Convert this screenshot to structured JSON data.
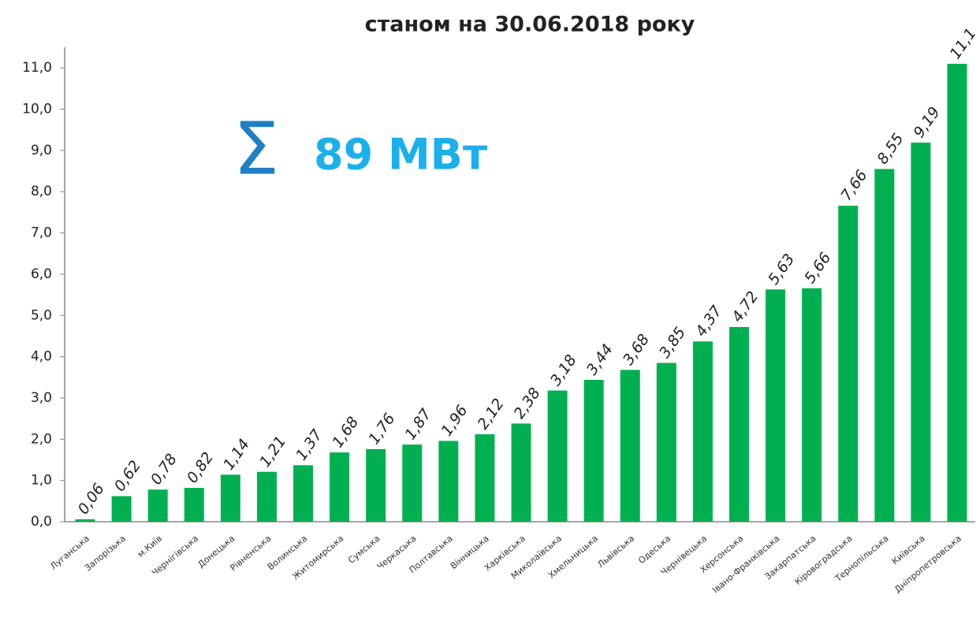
{
  "chart_data": {
    "type": "bar",
    "title": "станом на 30.06.2018 року",
    "annotation": {
      "symbol": "Σ",
      "text": "89 МВт"
    },
    "categories": [
      "Луганська",
      "Запорізька",
      "м.Київ",
      "Чернігівська",
      "Донецька",
      "Рівненська",
      "Волинська",
      "Житомирська",
      "Сумська",
      "Черкаська",
      "Полтавська",
      "Вінницька",
      "Харківська",
      "Миколаївська",
      "Хмельницька",
      "Львівська",
      "Одеська",
      "Чернівецька",
      "Херсонська",
      "Івано-Франківська",
      "Закарпатська",
      "Кіровоградська",
      "Тернопільська",
      "Київська",
      "Дніпропетровська"
    ],
    "values": [
      0.06,
      0.62,
      0.78,
      0.82,
      1.14,
      1.21,
      1.37,
      1.68,
      1.76,
      1.87,
      1.96,
      2.12,
      2.38,
      3.18,
      3.44,
      3.68,
      3.85,
      4.37,
      4.72,
      5.63,
      5.66,
      7.66,
      8.55,
      9.19,
      11.1
    ],
    "value_labels": [
      "0,06",
      "0,62",
      "0,78",
      "0,82",
      "1,14",
      "1,21",
      "1,37",
      "1,68",
      "1,76",
      "1,87",
      "1,96",
      "2,12",
      "2,38",
      "3,18",
      "3,44",
      "3,68",
      "3,85",
      "4,37",
      "4,72",
      "5,63",
      "5,66",
      "7,66",
      "8,55",
      "9,19",
      "11,1"
    ],
    "color": "#00b050",
    "ylim": [
      0,
      11.5
    ],
    "yticks": [
      {
        "value": 0,
        "label": "0,0"
      },
      {
        "value": 1,
        "label": "1,0"
      },
      {
        "value": 2,
        "label": "2,0"
      },
      {
        "value": 3,
        "label": "3,0"
      },
      {
        "value": 4,
        "label": "4,0"
      },
      {
        "value": 5,
        "label": "5,0"
      },
      {
        "value": 6,
        "label": "6,0"
      },
      {
        "value": 7,
        "label": "7,0"
      },
      {
        "value": 8,
        "label": "8,0"
      },
      {
        "value": 9,
        "label": "9,0"
      },
      {
        "value": 10,
        "label": "10,0"
      },
      {
        "value": 11,
        "label": "11,0"
      }
    ],
    "grid": false
  }
}
